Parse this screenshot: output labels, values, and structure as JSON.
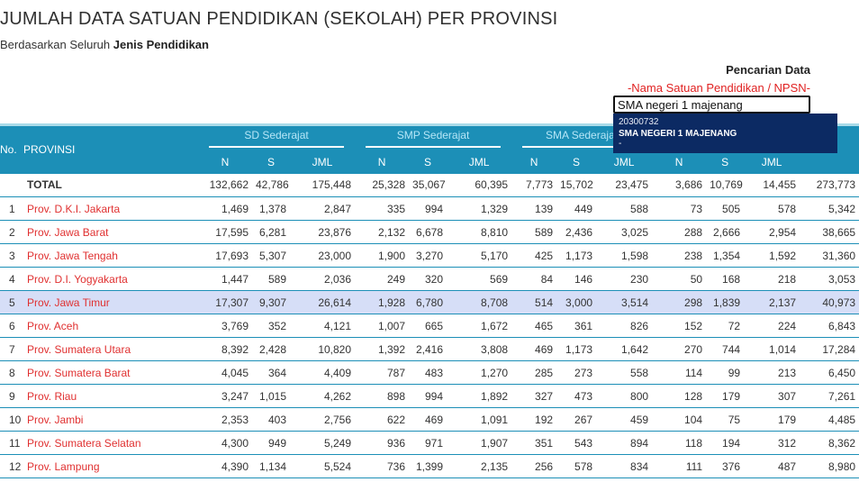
{
  "header": {
    "title": "JUMLAH DATA SATUAN PENDIDIKAN (SEKOLAH) PER PROVINSI",
    "subtitle_prefix": "Berdasarkan Seluruh",
    "subtitle_bold": "Jenis Pendidikan"
  },
  "search": {
    "title": "Pencarian Data",
    "hint": "-Nama Satuan Pendidikan / NPSN-",
    "value": "SMA negeri 1 majenang",
    "result": {
      "code": "20300732",
      "name": "SMA NEGERI 1 MAJENANG",
      "extra": "-"
    }
  },
  "table": {
    "col_no": "No.",
    "col_prov": "PROVINSI",
    "groups": [
      "SD Sederajat",
      "SMP Sederajat",
      "SMA Sederajat",
      ""
    ],
    "sub_headers": [
      "N",
      "S",
      "JML",
      "N",
      "S",
      "JML",
      "N",
      "S",
      "JML",
      "N",
      "S",
      "JML"
    ],
    "total": {
      "label": "TOTAL",
      "values": [
        "132,662",
        "42,786",
        "175,448",
        "25,328",
        "35,067",
        "60,395",
        "7,773",
        "15,702",
        "23,475",
        "3,686",
        "10,769",
        "14,455",
        "273,773"
      ]
    },
    "rows": [
      {
        "no": "1",
        "prov": "Prov. D.K.I. Jakarta",
        "values": [
          "1,469",
          "1,378",
          "2,847",
          "335",
          "994",
          "1,329",
          "139",
          "449",
          "588",
          "73",
          "505",
          "578",
          "5,342"
        ]
      },
      {
        "no": "2",
        "prov": "Prov. Jawa Barat",
        "values": [
          "17,595",
          "6,281",
          "23,876",
          "2,132",
          "6,678",
          "8,810",
          "589",
          "2,436",
          "3,025",
          "288",
          "2,666",
          "2,954",
          "38,665"
        ]
      },
      {
        "no": "3",
        "prov": "Prov. Jawa Tengah",
        "values": [
          "17,693",
          "5,307",
          "23,000",
          "1,900",
          "3,270",
          "5,170",
          "425",
          "1,173",
          "1,598",
          "238",
          "1,354",
          "1,592",
          "31,360"
        ]
      },
      {
        "no": "4",
        "prov": "Prov. D.I. Yogyakarta",
        "values": [
          "1,447",
          "589",
          "2,036",
          "249",
          "320",
          "569",
          "84",
          "146",
          "230",
          "50",
          "168",
          "218",
          "3,053"
        ]
      },
      {
        "no": "5",
        "prov": "Prov. Jawa Timur",
        "values": [
          "17,307",
          "9,307",
          "26,614",
          "1,928",
          "6,780",
          "8,708",
          "514",
          "3,000",
          "3,514",
          "298",
          "1,839",
          "2,137",
          "40,973"
        ]
      },
      {
        "no": "6",
        "prov": "Prov. Aceh",
        "values": [
          "3,769",
          "352",
          "4,121",
          "1,007",
          "665",
          "1,672",
          "465",
          "361",
          "826",
          "152",
          "72",
          "224",
          "6,843"
        ]
      },
      {
        "no": "7",
        "prov": "Prov. Sumatera Utara",
        "values": [
          "8,392",
          "2,428",
          "10,820",
          "1,392",
          "2,416",
          "3,808",
          "469",
          "1,173",
          "1,642",
          "270",
          "744",
          "1,014",
          "17,284"
        ]
      },
      {
        "no": "8",
        "prov": "Prov. Sumatera Barat",
        "values": [
          "4,045",
          "364",
          "4,409",
          "787",
          "483",
          "1,270",
          "285",
          "273",
          "558",
          "114",
          "99",
          "213",
          "6,450"
        ]
      },
      {
        "no": "9",
        "prov": "Prov. Riau",
        "values": [
          "3,247",
          "1,015",
          "4,262",
          "898",
          "994",
          "1,892",
          "327",
          "473",
          "800",
          "128",
          "179",
          "307",
          "7,261"
        ]
      },
      {
        "no": "10",
        "prov": "Prov. Jambi",
        "values": [
          "2,353",
          "403",
          "2,756",
          "622",
          "469",
          "1,091",
          "192",
          "267",
          "459",
          "104",
          "75",
          "179",
          "4,485"
        ]
      },
      {
        "no": "11",
        "prov": "Prov. Sumatera Selatan",
        "values": [
          "4,300",
          "949",
          "5,249",
          "936",
          "971",
          "1,907",
          "351",
          "543",
          "894",
          "118",
          "194",
          "312",
          "8,362"
        ]
      },
      {
        "no": "12",
        "prov": "Prov. Lampung",
        "values": [
          "4,390",
          "1,134",
          "5,524",
          "736",
          "1,399",
          "2,135",
          "256",
          "578",
          "834",
          "111",
          "376",
          "487",
          "8,980"
        ]
      }
    ],
    "highlight_row": 4
  },
  "colors": {
    "header_bg": "#1c8fb7",
    "link_red": "#e03030",
    "highlight_bg": "#d6def7",
    "dropdown_bg": "#0c2a63"
  }
}
